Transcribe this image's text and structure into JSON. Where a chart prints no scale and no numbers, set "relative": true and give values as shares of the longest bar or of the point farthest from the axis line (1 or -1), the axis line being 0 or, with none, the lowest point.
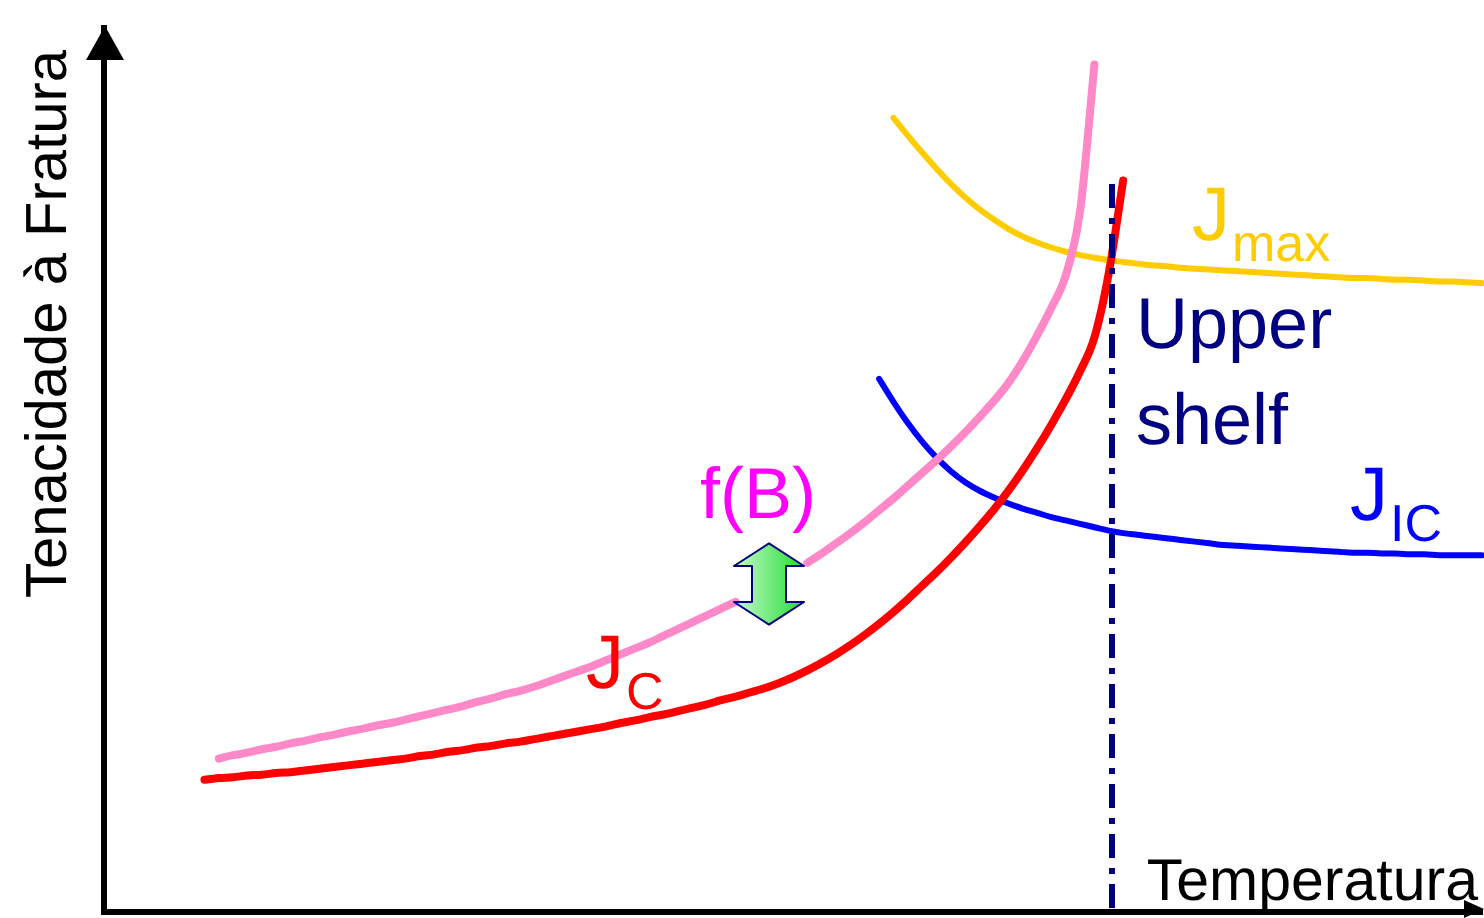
{
  "chart_data": {
    "type": "line",
    "xlabel": "Temperatura",
    "ylabel": "Tenacidade à Fratura",
    "relative": true,
    "categories": [
      null,
      null,
      null,
      null,
      null,
      null,
      null,
      null,
      null,
      null,
      null,
      null,
      null,
      null,
      null,
      null,
      null,
      null,
      null,
      null,
      null,
      null,
      null,
      null,
      null,
      null,
      null,
      null,
      null,
      null,
      null,
      null,
      null,
      null,
      null,
      null,
      null,
      null,
      null,
      null,
      null,
      null,
      null,
      null,
      null,
      null,
      null,
      null,
      null,
      null,
      null,
      null,
      null,
      null,
      null,
      null,
      null,
      null,
      null,
      null,
      null,
      null,
      null,
      null,
      null,
      null,
      null,
      null,
      null,
      null,
      null,
      null,
      null,
      null,
      null,
      null,
      null,
      null,
      null,
      null,
      null,
      null,
      null,
      null,
      null,
      null,
      null,
      null,
      null,
      null,
      null,
      null,
      null,
      null,
      null,
      null,
      null
    ],
    "series": [
      {
        "name": "J$_{C}$",
        "color": "#ff0000",
        "values": [
          null,
          null,
          null,
          null,
          null,
          null,
          null,
          0.156,
          0.158,
          0.159,
          0.161,
          0.162,
          0.164,
          0.165,
          0.167,
          0.169,
          0.171,
          0.173,
          0.175,
          0.177,
          0.179,
          0.181,
          0.184,
          0.186,
          0.189,
          0.191,
          0.194,
          0.196,
          0.199,
          0.201,
          0.204,
          0.207,
          0.21,
          0.213,
          0.216,
          0.219,
          0.223,
          0.226,
          0.23,
          0.233,
          0.237,
          0.241,
          0.245,
          0.25,
          0.254,
          0.259,
          0.264,
          0.27,
          0.277,
          0.285,
          0.294,
          0.304,
          0.315,
          0.327,
          0.34,
          0.354,
          0.369,
          0.385,
          0.401,
          0.418,
          0.436,
          0.455,
          0.475,
          0.497,
          0.521,
          0.547,
          0.575,
          0.605,
          0.638,
          0.678,
          0.754,
          0.863,
          null,
          null,
          null,
          null,
          null,
          null,
          null,
          null,
          null,
          null,
          null,
          null,
          null,
          null,
          null,
          null,
          null,
          null,
          null,
          null,
          null,
          null,
          null,
          null,
          null
        ]
      },
      {
        "color": "#ff88c8",
        "values": [
          null,
          null,
          null,
          null,
          null,
          null,
          null,
          null,
          0.181,
          0.185,
          0.188,
          0.192,
          0.195,
          0.199,
          0.202,
          0.206,
          0.209,
          0.213,
          0.216,
          0.22,
          0.223,
          0.227,
          0.231,
          0.235,
          0.239,
          0.243,
          0.248,
          0.252,
          0.257,
          0.261,
          0.266,
          0.272,
          0.278,
          0.284,
          0.29,
          0.297,
          0.304,
          0.311,
          0.318,
          0.326,
          0.334,
          0.342,
          0.35,
          0.358,
          0.366,
          null,
          null,
          null,
          null,
          0.412,
          0.423,
          0.435,
          0.447,
          0.46,
          0.474,
          0.488,
          0.503,
          0.518,
          0.533,
          0.549,
          0.566,
          0.584,
          0.603,
          0.624,
          0.65,
          0.68,
          0.713,
          0.751,
          0.827,
          1,
          null,
          null,
          null,
          null,
          null,
          null,
          null,
          null,
          null,
          null,
          null,
          null,
          null,
          null,
          null,
          null,
          null,
          null,
          null,
          null,
          null,
          null,
          null,
          null,
          null,
          null,
          null
        ]
      },
      {
        "name": "J$_{max}$",
        "color": "#ffcc00",
        "values": [
          null,
          null,
          null,
          null,
          null,
          null,
          null,
          null,
          null,
          null,
          null,
          null,
          null,
          null,
          null,
          null,
          null,
          null,
          null,
          null,
          null,
          null,
          null,
          null,
          null,
          null,
          null,
          null,
          null,
          null,
          null,
          null,
          null,
          null,
          null,
          null,
          null,
          null,
          null,
          null,
          null,
          null,
          null,
          null,
          null,
          null,
          null,
          null,
          null,
          null,
          null,
          null,
          null,
          null,
          null,
          0.937,
          0.916,
          0.896,
          0.877,
          0.859,
          0.843,
          0.829,
          0.817,
          0.806,
          0.797,
          0.79,
          0.784,
          0.779,
          0.775,
          0.772,
          0.769,
          0.767,
          0.765,
          0.763,
          0.762,
          0.76,
          0.759,
          0.758,
          0.757,
          0.756,
          0.755,
          0.754,
          0.753,
          0.752,
          0.751,
          0.75,
          0.749,
          0.748,
          0.748,
          0.747,
          0.746,
          0.746,
          0.745,
          0.744,
          0.744,
          0.743,
          0.742
        ]
      },
      {
        "name": "J$_{IC}$",
        "color": "#0000ff",
        "values": [
          null,
          null,
          null,
          null,
          null,
          null,
          null,
          null,
          null,
          null,
          null,
          null,
          null,
          null,
          null,
          null,
          null,
          null,
          null,
          null,
          null,
          null,
          null,
          null,
          null,
          null,
          null,
          null,
          null,
          null,
          null,
          null,
          null,
          null,
          null,
          null,
          null,
          null,
          null,
          null,
          null,
          null,
          null,
          null,
          null,
          null,
          null,
          null,
          null,
          null,
          null,
          null,
          null,
          null,
          0.629,
          0.602,
          0.577,
          0.555,
          0.536,
          0.52,
          0.507,
          0.497,
          0.489,
          0.482,
          0.476,
          0.471,
          0.466,
          0.462,
          0.458,
          0.454,
          0.45,
          0.447,
          0.445,
          0.443,
          0.441,
          0.439,
          0.437,
          0.435,
          0.433,
          0.432,
          0.431,
          0.43,
          0.429,
          0.428,
          0.427,
          0.426,
          0.425,
          0.424,
          0.424,
          0.423,
          0.423,
          0.422,
          0.422,
          0.421,
          0.421,
          0.421,
          0.421
        ]
      }
    ],
    "annotations": [
      "f(B)",
      "Upper shelf"
    ]
  }
}
